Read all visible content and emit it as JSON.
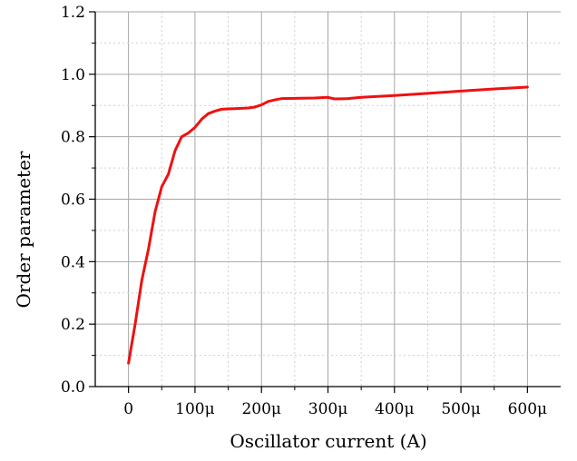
{
  "chart_data": {
    "type": "line",
    "title": "",
    "xlabel": "Oscillator current (A)",
    "ylabel": "Order parameter",
    "xlim": [
      -5e-05,
      0.00065
    ],
    "ylim": [
      0.0,
      1.2
    ],
    "x_ticks": [
      {
        "value": 0,
        "label": "0"
      },
      {
        "value": 0.0001,
        "label": "100μ"
      },
      {
        "value": 0.0002,
        "label": "200μ"
      },
      {
        "value": 0.0003,
        "label": "300μ"
      },
      {
        "value": 0.0004,
        "label": "400μ"
      },
      {
        "value": 0.0005,
        "label": "500μ"
      },
      {
        "value": 0.0006,
        "label": "600μ"
      }
    ],
    "y_ticks": [
      {
        "value": 0.0,
        "label": "0.0"
      },
      {
        "value": 0.2,
        "label": "0.2"
      },
      {
        "value": 0.4,
        "label": "0.4"
      },
      {
        "value": 0.6,
        "label": "0.6"
      },
      {
        "value": 0.8,
        "label": "0.8"
      },
      {
        "value": 1.0,
        "label": "1.0"
      },
      {
        "value": 1.2,
        "label": "1.2"
      }
    ],
    "grid": true,
    "series": [
      {
        "color": "#ee1111",
        "x": [
          0,
          1e-05,
          2e-05,
          3e-05,
          4e-05,
          5e-05,
          6e-05,
          7e-05,
          8e-05,
          9e-05,
          0.0001,
          0.00011,
          0.00012,
          0.00013,
          0.00014,
          0.00015,
          0.00016,
          0.00017,
          0.00018,
          0.00019,
          0.0002,
          0.00021,
          0.00022,
          0.00023,
          0.00025,
          0.00028,
          0.0003,
          0.00031,
          0.00033,
          0.00035,
          0.0004,
          0.00045,
          0.0005,
          0.00055,
          0.0006
        ],
        "y": [
          0.075,
          0.2,
          0.34,
          0.44,
          0.56,
          0.64,
          0.68,
          0.755,
          0.8,
          0.812,
          0.83,
          0.856,
          0.874,
          0.882,
          0.888,
          0.889,
          0.89,
          0.891,
          0.892,
          0.895,
          0.902,
          0.913,
          0.918,
          0.922,
          0.923,
          0.924,
          0.926,
          0.921,
          0.922,
          0.926,
          0.932,
          0.939,
          0.946,
          0.953,
          0.959
        ]
      }
    ]
  }
}
